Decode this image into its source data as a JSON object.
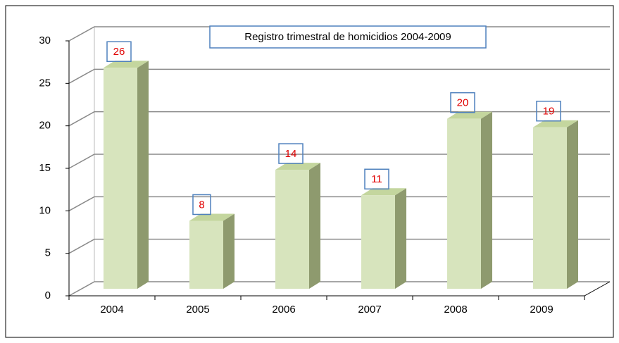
{
  "chart_data": {
    "type": "bar",
    "title": "Registro trimestral de homicidios 2004-2009",
    "categories": [
      "2004",
      "2005",
      "2006",
      "2007",
      "2008",
      "2009"
    ],
    "values": [
      26,
      8,
      14,
      11,
      20,
      19
    ],
    "color": "#d7e4bd",
    "ylim": [
      0,
      30
    ],
    "yticks": [
      0,
      5,
      10,
      15,
      20,
      25,
      30
    ],
    "grid": true
  }
}
